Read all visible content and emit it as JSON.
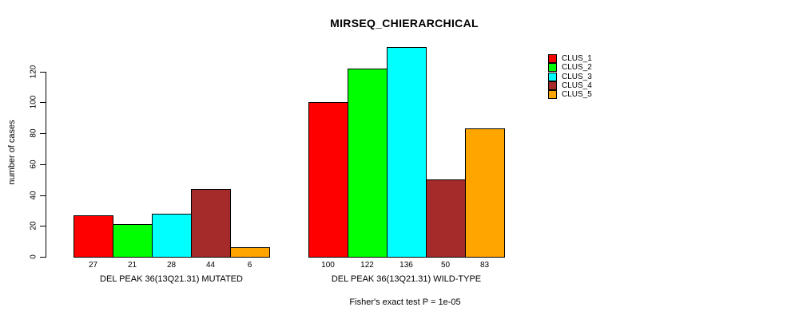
{
  "figure": {
    "title": "MIRSEQ_CHIERARCHICAL",
    "ylabel": "number of cases",
    "caption": "Fisher's exact test P = 1e-05"
  },
  "chart_data": {
    "type": "bar",
    "title": "MIRSEQ_CHIERARCHICAL",
    "xlabel": "",
    "ylabel": "number of cases",
    "annotation": "Fisher's exact test P = 1e-05",
    "categories": [
      "DEL PEAK 36(13Q21.31) MUTATED",
      "DEL PEAK 36(13Q21.31) WILD-TYPE"
    ],
    "series": [
      {
        "name": "CLUS_1",
        "color": "#FF0000",
        "values": [
          27,
          100
        ]
      },
      {
        "name": "CLUS_2",
        "color": "#00FF00",
        "values": [
          21,
          122
        ]
      },
      {
        "name": "CLUS_3",
        "color": "#00FFFF",
        "values": [
          28,
          136
        ]
      },
      {
        "name": "CLUS_4",
        "color": "#A52A2A",
        "values": [
          44,
          50
        ]
      },
      {
        "name": "CLUS_5",
        "color": "#FFA500",
        "values": [
          6,
          83
        ]
      }
    ],
    "bar_value_labels": [
      [
        27,
        21,
        28,
        44,
        6
      ],
      [
        100,
        122,
        136,
        50,
        83
      ]
    ],
    "yticks": [
      0,
      20,
      40,
      60,
      80,
      100,
      120
    ],
    "ylim": [
      0,
      136
    ],
    "grid": false,
    "legend_position": "top-right",
    "axis_color": "#000000",
    "bar_border_color": "#000000",
    "background_color": "#FFFFFF"
  }
}
